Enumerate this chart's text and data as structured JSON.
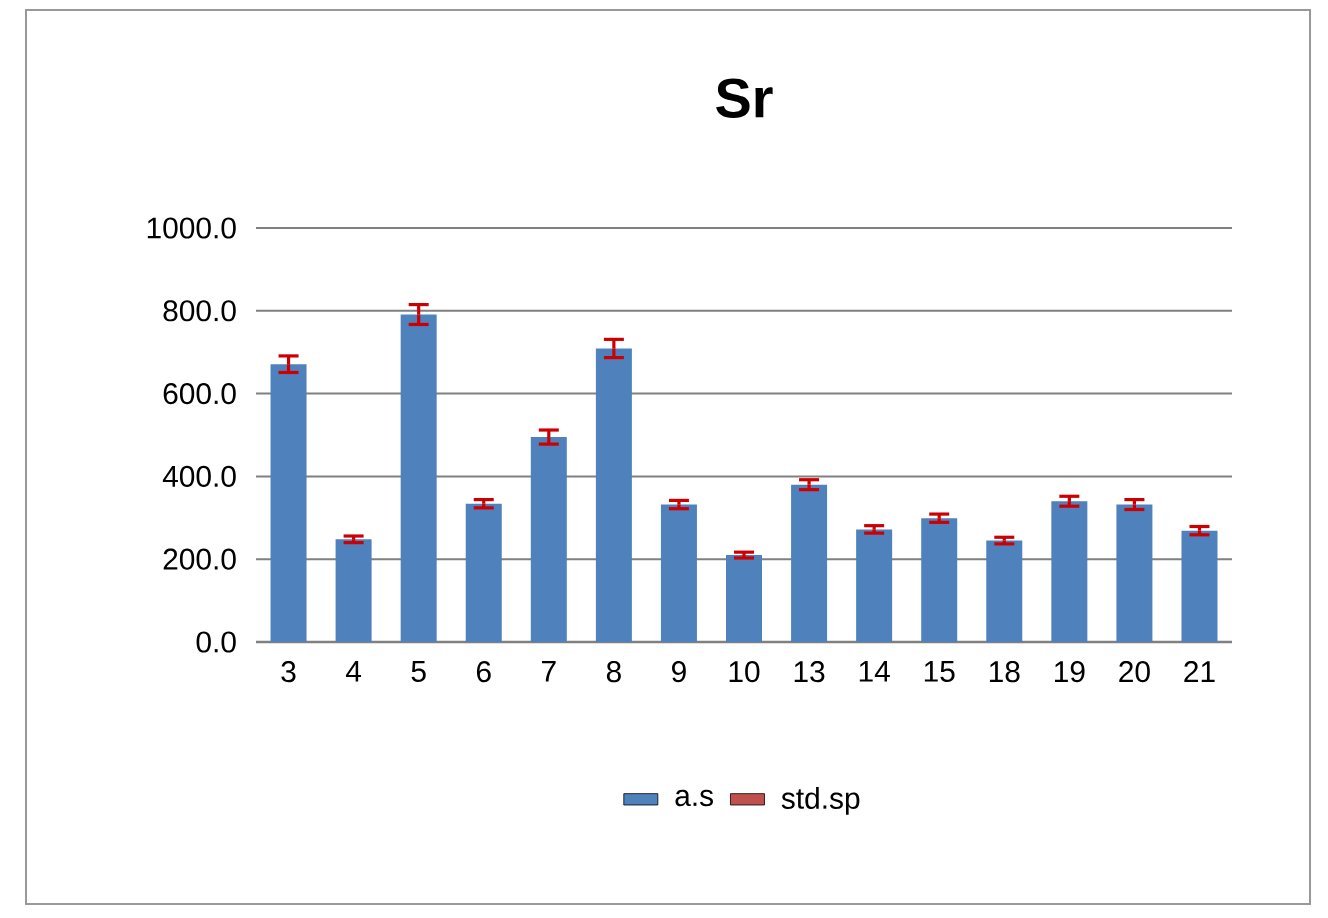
{
  "chart_data": {
    "type": "bar",
    "title": "Sr",
    "categories": [
      "3",
      "4",
      "5",
      "6",
      "7",
      "8",
      "9",
      "10",
      "13",
      "14",
      "15",
      "18",
      "19",
      "20",
      "21"
    ],
    "series": [
      {
        "name": "a.s",
        "color": "#4f81bd",
        "values": [
          671,
          248,
          791,
          334,
          495,
          709,
          332,
          210,
          380,
          272,
          299,
          245,
          340,
          332,
          269
        ],
        "errors": [
          20,
          8,
          24,
          10,
          17,
          22,
          10,
          7,
          12,
          9,
          10,
          8,
          12,
          12,
          10
        ]
      },
      {
        "name": "std.sp",
        "color": "#c0504d",
        "values": [
          null,
          null,
          null,
          null,
          null,
          null,
          null,
          null,
          null,
          null,
          null,
          null,
          null,
          null,
          null
        ]
      }
    ],
    "ylim": [
      0,
      1000
    ],
    "yticks": [
      {
        "value": 0,
        "label": "0.0"
      },
      {
        "value": 200,
        "label": "200.0"
      },
      {
        "value": 400,
        "label": "400.0"
      },
      {
        "value": 600,
        "label": "600.0"
      },
      {
        "value": 800,
        "label": "800.0"
      },
      {
        "value": 1000,
        "label": "1000.0"
      }
    ],
    "grid": "y",
    "legend": "bottom"
  }
}
